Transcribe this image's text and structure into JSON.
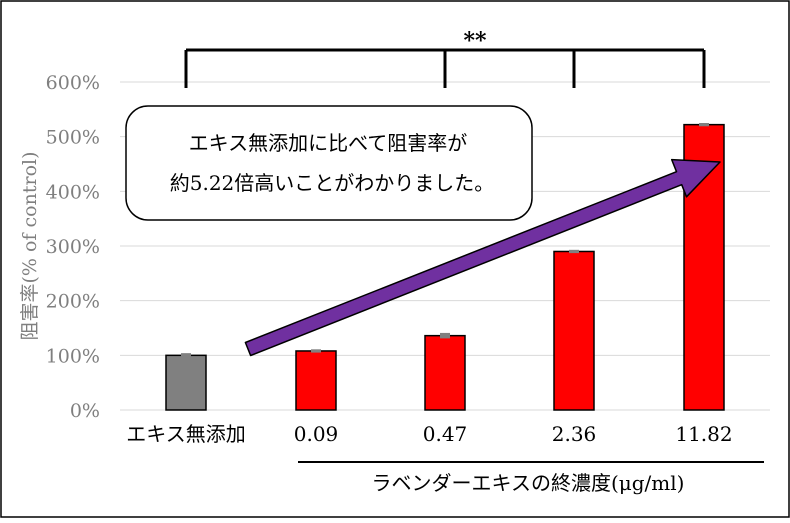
{
  "chart_data": {
    "type": "bar",
    "categories": [
      "エキス無添加",
      "0.09",
      "0.47",
      "2.36",
      "11.82"
    ],
    "values": [
      100,
      108,
      136,
      290,
      522
    ],
    "errors": [
      4,
      3,
      5,
      3,
      3
    ],
    "bar_colors": [
      "#808080",
      "#ff0000",
      "#ff0000",
      "#ff0000",
      "#ff0000"
    ],
    "ylabel": "阻害率(% of control)",
    "xlabel": "ラベンダーエキスの終濃度(μg/ml)",
    "ylim": [
      0,
      600
    ],
    "yticks": [
      0,
      100,
      200,
      300,
      400,
      500,
      600
    ],
    "ytick_labels": [
      "0%",
      "100%",
      "200%",
      "300%",
      "400%",
      "500%",
      "600%"
    ],
    "grid": true,
    "significance": {
      "label": "**",
      "from_category": 0,
      "to_categories": [
        2,
        3,
        4
      ]
    },
    "annotation": {
      "line1": "エキス無添加に比べて阻害率が",
      "line2": "約5.22倍高いことがわかりました。"
    },
    "arrow_color": "#7030a0"
  }
}
